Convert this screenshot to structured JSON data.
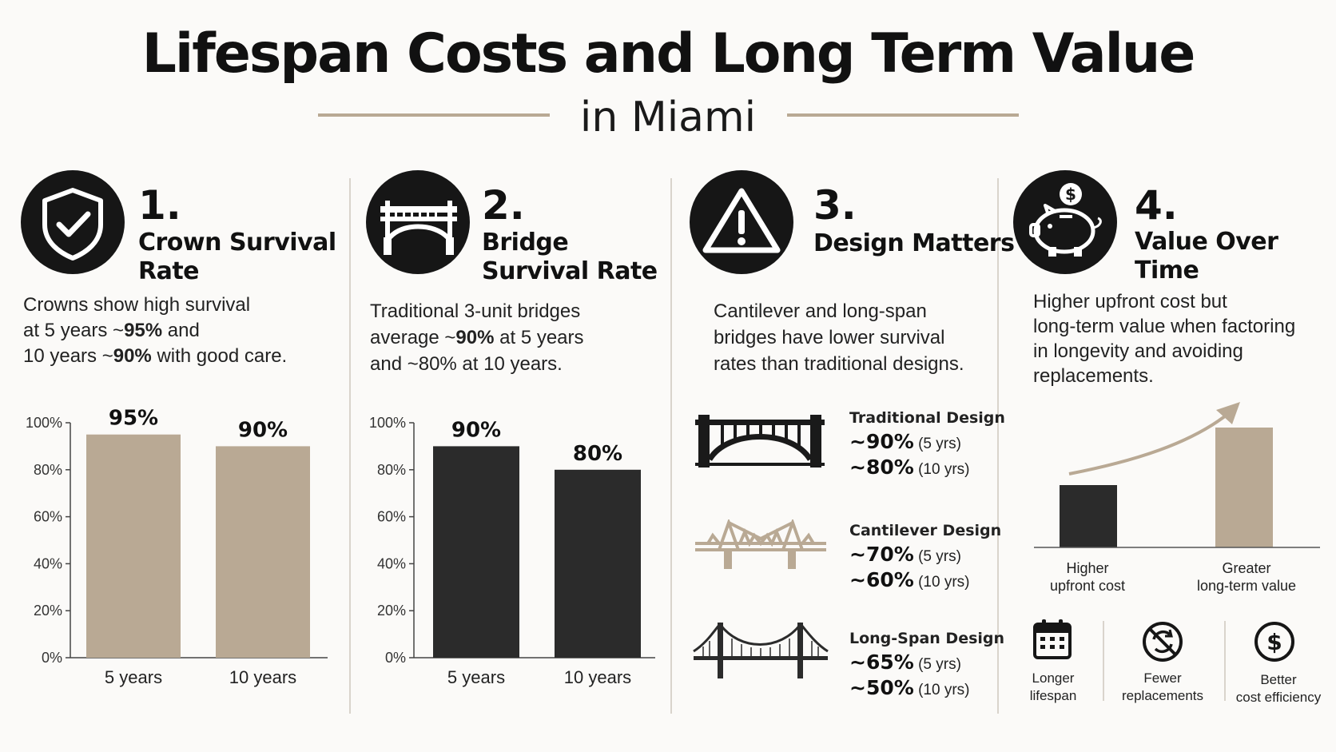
{
  "header": {
    "title": "Lifespan Costs and Long Term Value",
    "subtitle": "in Miami"
  },
  "colors": {
    "tan": "#b9a994",
    "dark": "#2b2b2b",
    "black": "#161616"
  },
  "sections": [
    {
      "number": "1.",
      "heading_line1": "Crown Survival",
      "heading_line2": "Rate",
      "icon": "shield-check-icon",
      "body_lines": [
        "Crowns show high survival",
        "at 5 years ~95% and",
        "10 years ~90% with good care."
      ]
    },
    {
      "number": "2.",
      "heading_line1": "Bridge",
      "heading_line2": "Survival Rate",
      "icon": "bridge-icon",
      "body_lines": [
        "Traditional 3-unit bridges",
        "average ~90% at 5 years",
        "and ~80% at 10 years."
      ]
    },
    {
      "number": "3.",
      "heading_line1": "Design Matters",
      "icon": "warning-icon",
      "body_lines": [
        "Cantilever and long-span",
        "bridges have lower survival",
        "rates than traditional designs."
      ]
    },
    {
      "number": "4.",
      "heading_line1": "Value Over Time",
      "icon": "piggy-bank-icon",
      "body_lines": [
        "Higher upfront cost but",
        "long-term value when factoring",
        "in longevity and avoiding",
        "replacements."
      ]
    }
  ],
  "chart_data": [
    {
      "type": "bar",
      "categories": [
        "5 years",
        "10 years"
      ],
      "values": [
        95,
        90
      ],
      "value_labels": [
        "95%",
        "90%"
      ],
      "yticks": [
        "0%",
        "20%",
        "40%",
        "60%",
        "80%",
        "100%"
      ],
      "ylim": [
        0,
        100
      ],
      "color": "#b9a994"
    },
    {
      "type": "bar",
      "categories": [
        "5 years",
        "10 years"
      ],
      "values": [
        90,
        80
      ],
      "value_labels": [
        "90%",
        "80%"
      ],
      "yticks": [
        "0%",
        "20%",
        "40%",
        "60%",
        "80%",
        "100%"
      ],
      "ylim": [
        0,
        100
      ],
      "color": "#2b2b2b"
    },
    {
      "type": "bar",
      "categories": [
        "Higher upfront cost",
        "Greater long-term value"
      ],
      "values": [
        1,
        2
      ],
      "color_a": "#2b2b2b",
      "color_b": "#b9a994"
    }
  ],
  "designs": [
    {
      "name": "Traditional Design",
      "rate5": "~90%",
      "yrs5": "(5 yrs)",
      "rate10": "~80%",
      "yrs10": "(10 yrs)",
      "icon": "traditional-bridge-icon"
    },
    {
      "name": "Cantilever Design",
      "rate5": "~70%",
      "yrs5": "(5 yrs)",
      "rate10": "~60%",
      "yrs10": "(10 yrs)",
      "icon": "cantilever-bridge-icon"
    },
    {
      "name": "Long-Span Design",
      "rate5": "~65%",
      "yrs5": "(5 yrs)",
      "rate10": "~50%",
      "yrs10": "(10 yrs)",
      "icon": "suspension-bridge-icon"
    }
  ],
  "value_chart": {
    "label_a_line1": "Higher",
    "label_a_line2": "upfront cost",
    "label_b_line1": "Greater",
    "label_b_line2": "long-term value"
  },
  "benefits": [
    {
      "line1": "Longer",
      "line2": "lifespan",
      "icon": "calendar-icon"
    },
    {
      "line1": "Fewer",
      "line2": "replacements",
      "icon": "no-replace-icon"
    },
    {
      "line1": "Better",
      "line2": "cost efficiency",
      "icon": "dollar-icon"
    }
  ]
}
